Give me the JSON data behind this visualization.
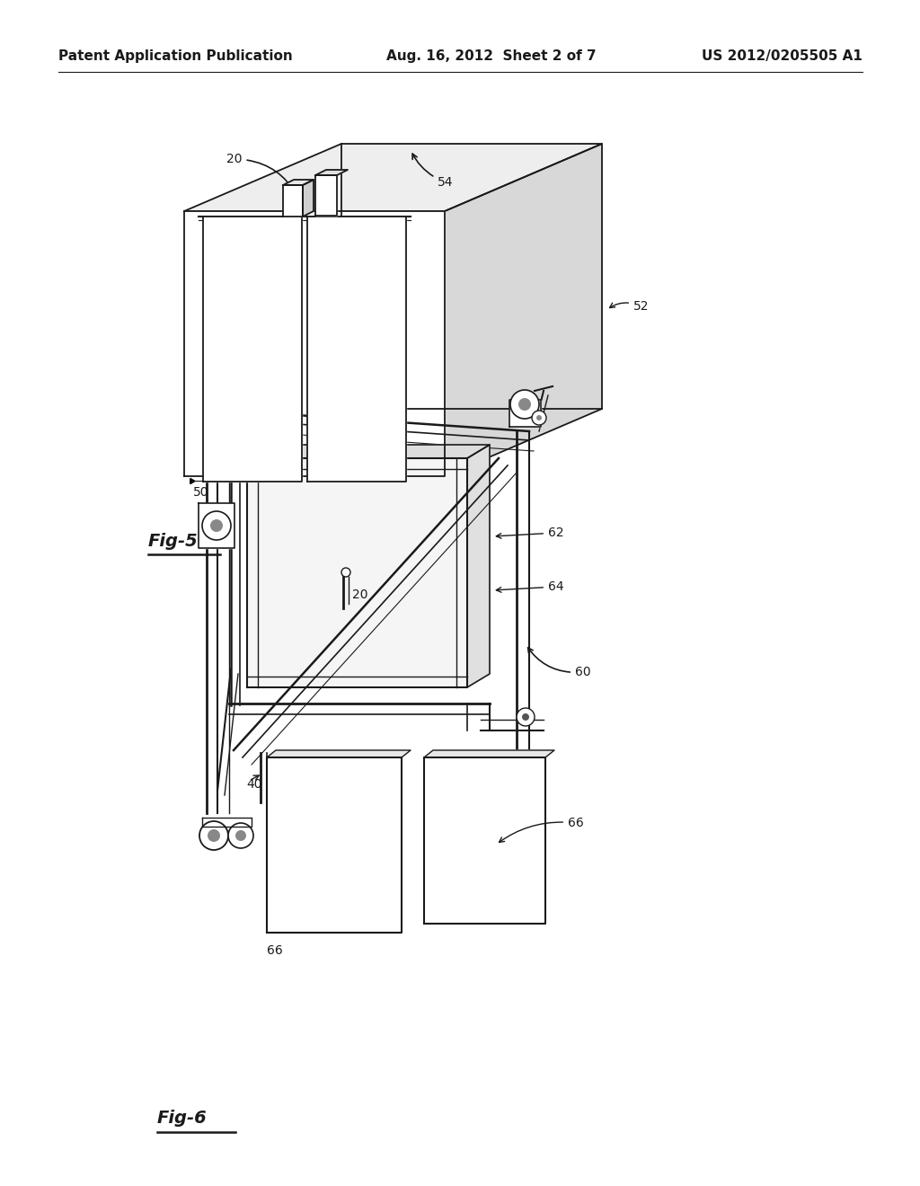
{
  "header_left": "Patent Application Publication",
  "header_center": "Aug. 16, 2012  Sheet 2 of 7",
  "header_right": "US 2012/0205505 A1",
  "fig5_label": "Fig-5",
  "fig6_label": "Fig-6",
  "background_color": "#ffffff",
  "line_color": "#1a1a1a",
  "header_fontsize": 11,
  "label_fontsize": 10,
  "fig_label_fontsize": 14
}
